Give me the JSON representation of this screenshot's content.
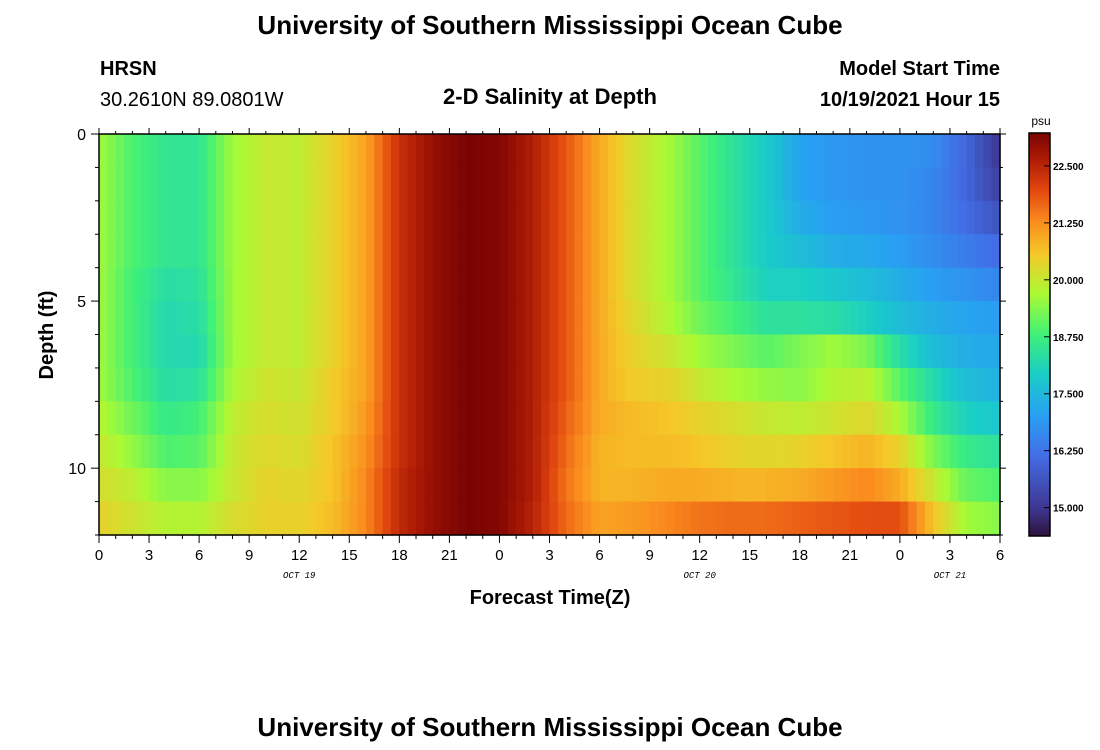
{
  "header": {
    "title": "University of Southern Mississippi Ocean Cube",
    "station": "HRSN",
    "coords": "30.2610N  89.0801W",
    "subtitle": "2-D Salinity at Depth",
    "model_label": "Model Start Time",
    "model_time": "10/19/2021 Hour 15"
  },
  "footer": {
    "title": "University of Southern Mississippi Ocean Cube"
  },
  "chart_data": {
    "type": "heatmap",
    "title": "2-D Salinity at Depth",
    "xlabel": "Forecast Time(Z)",
    "ylabel": "Depth (ft)",
    "colorbar_unit": "psu",
    "colorbar_ticks": [
      "22.500",
      "21.250",
      "20.000",
      "18.750",
      "17.500",
      "16.250",
      "15.000"
    ],
    "colorbar_range": [
      14.4,
      23.2
    ],
    "x_tick_labels": [
      "0",
      "3",
      "6",
      "9",
      "12",
      "15",
      "18",
      "21",
      "0",
      "3",
      "6",
      "9",
      "12",
      "15",
      "18",
      "21",
      "0",
      "3",
      "6"
    ],
    "x_date_labels": [
      {
        "label": "OCT 19",
        "at_tick": 4
      },
      {
        "label": "OCT 20",
        "at_tick": 12
      },
      {
        "label": "OCT 21",
        "at_tick": 17
      }
    ],
    "y_tick_labels": [
      "0",
      "5",
      "10"
    ],
    "y_ticks": [
      0,
      5,
      10
    ],
    "ylim": [
      0,
      12
    ],
    "x_hours_total": 54,
    "grid": false,
    "legend": "colorbar right",
    "column_keys_hours": [
      0,
      2,
      4,
      6,
      8,
      10,
      12,
      14,
      16,
      18,
      20,
      22,
      24,
      26,
      28,
      30,
      32,
      34,
      36,
      38,
      40,
      42,
      44,
      46,
      48,
      50,
      52,
      54
    ],
    "profiles": [
      [
        19.6,
        19.6,
        19.6,
        19.6,
        19.6,
        19.6,
        19.6,
        19.6,
        19.8,
        20.0,
        20.2,
        20.4
      ],
      [
        18.9,
        18.9,
        18.9,
        18.9,
        18.8,
        18.8,
        18.8,
        18.9,
        19.2,
        19.5,
        19.9,
        20.1
      ],
      [
        18.5,
        18.5,
        18.5,
        18.5,
        18.3,
        18.2,
        18.2,
        18.3,
        18.6,
        18.9,
        19.4,
        19.8
      ],
      [
        18.5,
        18.5,
        18.5,
        18.5,
        18.4,
        18.3,
        18.2,
        18.4,
        18.8,
        19.0,
        19.4,
        19.8
      ],
      [
        19.6,
        19.6,
        19.6,
        19.6,
        19.6,
        19.6,
        19.6,
        19.7,
        19.9,
        20.0,
        20.0,
        20.2
      ],
      [
        20.0,
        20.0,
        20.0,
        20.0,
        20.0,
        20.0,
        20.0,
        20.1,
        20.2,
        20.3,
        20.4,
        20.4
      ],
      [
        19.9,
        19.9,
        19.9,
        19.9,
        19.9,
        19.9,
        19.9,
        20.0,
        20.1,
        20.2,
        20.3,
        20.4
      ],
      [
        20.4,
        20.4,
        20.4,
        20.4,
        20.4,
        20.4,
        20.4,
        20.5,
        20.5,
        20.6,
        20.6,
        20.7
      ],
      [
        21.0,
        21.0,
        21.0,
        21.0,
        21.0,
        21.0,
        21.0,
        21.0,
        21.1,
        21.2,
        21.3,
        21.3
      ],
      [
        22.3,
        22.3,
        22.3,
        22.3,
        22.3,
        22.3,
        22.3,
        22.3,
        22.3,
        22.3,
        22.4,
        22.4
      ],
      [
        22.9,
        22.9,
        22.9,
        22.9,
        22.9,
        22.9,
        22.9,
        22.9,
        22.9,
        22.9,
        22.9,
        22.9
      ],
      [
        23.2,
        23.2,
        23.2,
        23.2,
        23.2,
        23.2,
        23.2,
        23.2,
        23.2,
        23.2,
        23.2,
        23.2
      ],
      [
        23.1,
        23.1,
        23.1,
        23.1,
        23.1,
        23.1,
        23.1,
        23.1,
        23.1,
        23.1,
        23.1,
        23.1
      ],
      [
        22.6,
        22.6,
        22.6,
        22.6,
        22.6,
        22.6,
        22.6,
        22.6,
        22.6,
        22.6,
        22.6,
        22.5
      ],
      [
        21.8,
        21.8,
        21.8,
        21.8,
        21.8,
        21.8,
        21.8,
        21.8,
        21.7,
        21.6,
        21.5,
        21.6
      ],
      [
        20.9,
        20.9,
        20.9,
        20.9,
        20.9,
        20.9,
        20.9,
        20.9,
        20.9,
        20.8,
        20.8,
        21.0
      ],
      [
        20.2,
        20.2,
        20.2,
        20.2,
        20.2,
        20.3,
        20.4,
        20.5,
        20.7,
        20.7,
        20.8,
        21.1
      ],
      [
        19.7,
        19.7,
        19.7,
        19.7,
        19.7,
        19.8,
        20.1,
        20.4,
        20.6,
        20.7,
        20.9,
        21.3
      ],
      [
        19.0,
        19.0,
        19.0,
        19.0,
        19.0,
        19.2,
        19.6,
        20.0,
        20.4,
        20.6,
        20.9,
        21.5
      ],
      [
        18.4,
        18.4,
        18.4,
        18.4,
        18.5,
        18.8,
        19.3,
        19.7,
        20.2,
        20.4,
        20.8,
        21.6
      ],
      [
        17.9,
        17.9,
        17.9,
        17.9,
        18.0,
        18.4,
        19.0,
        19.5,
        20.0,
        20.3,
        20.8,
        21.6
      ],
      [
        17.1,
        17.1,
        17.3,
        17.6,
        18.0,
        18.4,
        19.3,
        19.4,
        19.9,
        20.4,
        20.9,
        21.7
      ],
      [
        16.9,
        16.9,
        17.0,
        17.3,
        17.8,
        18.3,
        19.6,
        19.8,
        20.1,
        20.6,
        21.1,
        21.8
      ],
      [
        16.8,
        16.8,
        16.9,
        17.2,
        17.6,
        18.0,
        19.3,
        19.9,
        20.3,
        20.8,
        21.3,
        21.9
      ],
      [
        16.8,
        16.8,
        16.8,
        17.0,
        17.3,
        17.6,
        18.3,
        19.0,
        19.7,
        20.4,
        20.9,
        21.9
      ],
      [
        16.7,
        16.6,
        16.6,
        16.7,
        17.0,
        17.3,
        17.6,
        18.2,
        18.6,
        19.3,
        20.0,
        20.6
      ],
      [
        16.0,
        16.0,
        16.1,
        16.4,
        16.8,
        17.1,
        17.3,
        17.6,
        18.0,
        18.6,
        19.1,
        19.6
      ],
      [
        15.0,
        15.2,
        15.6,
        16.1,
        16.6,
        17.0,
        17.2,
        17.4,
        17.8,
        18.4,
        18.9,
        19.4
      ]
    ]
  }
}
